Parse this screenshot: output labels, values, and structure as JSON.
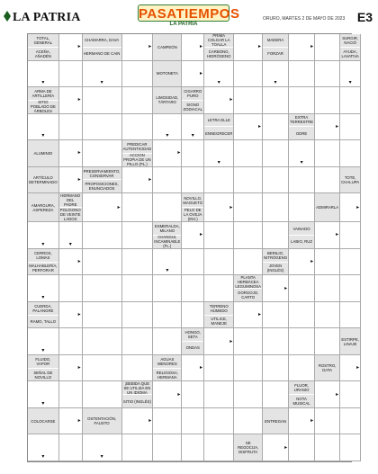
{
  "header": {
    "brand": "LA PATRIA",
    "logo_main": "PASATIEMPOS",
    "logo_sub": "LA PATRIA",
    "date": "ORURO, MARTES 2 DE MAYO DE 2023",
    "page": "E3"
  },
  "grid": {
    "cols": 12,
    "rows": 16,
    "defs": [
      {
        "r": 0,
        "c": 0,
        "clues": [
          "TOTAL, GENERAL",
          "ACEÑA, AÑADÉN"
        ]
      },
      {
        "r": 0,
        "c": 2,
        "clues": [
          "CHAMARRA, DAVA",
          "HERMANO DE CAIN"
        ]
      },
      {
        "r": 0,
        "c": 4,
        "clues": [
          "CAMPEÓN"
        ]
      },
      {
        "r": 0,
        "c": 6,
        "clues": [
          "PRIMA COLGAR LA TOALLA",
          "CARBONO, HIDRÓGENO"
        ]
      },
      {
        "r": 0,
        "c": 8,
        "clues": [
          "MADERA",
          "FORZAR"
        ]
      },
      {
        "r": 0,
        "c": 11,
        "clues": [
          "SURGIR, NACIÓ",
          "AYUDA, LAVATIVA"
        ]
      },
      {
        "r": 1,
        "c": 4,
        "clues": [
          "MOTONETA"
        ]
      },
      {
        "r": 2,
        "c": 4,
        "clues": [
          "LIMOSIDAD, TÁRTARO"
        ]
      },
      {
        "r": 2,
        "c": 0,
        "clues": [
          "ARMA DE ARTILLERÍA",
          "SITIO POBLADO DE ÁRBOLES"
        ]
      },
      {
        "r": 2,
        "c": 5,
        "clues": [
          "CIGARRO PURO",
          "SIGNO ZODIACAL"
        ]
      },
      {
        "r": 3,
        "c": 6,
        "clues": [
          "LETRA ELLE",
          "ENNEGRECER"
        ]
      },
      {
        "r": 3,
        "c": 9,
        "clues": [
          "EXTRA TERRESTRE",
          "ODRE"
        ]
      },
      {
        "r": 4,
        "c": 0,
        "clues": [
          "ALUMINIO"
        ]
      },
      {
        "r": 4,
        "c": 3,
        "clues": [
          "PREDICAR AUTENTICIDAD",
          "ACCIÓN PROPIA DE UN PILLO (PL.)"
        ]
      },
      {
        "r": 5,
        "c": 0,
        "clues": [
          "ARTÍCULO DETERMINADO"
        ]
      },
      {
        "r": 5,
        "c": 2,
        "clues": [
          "PRESERVAMIENTO, CONSERVAR",
          "PROPOSICIONES, ENUNCIADOS"
        ]
      },
      {
        "r": 5,
        "c": 11,
        "clues": [
          "TOTE, CHALUPA"
        ]
      },
      {
        "r": 6,
        "c": 1,
        "clues": [
          "HERMANO DEL PADRE",
          "POLÍGONO DE VEINTE LADOS"
        ]
      },
      {
        "r": 6,
        "c": 5,
        "clues": [
          "NOVILLO, MAGUETO",
          "PELO DE LA OVEJA (INV.)"
        ]
      },
      {
        "r": 6,
        "c": 0,
        "clues": [
          "AMARGURA, ASPEREZA"
        ]
      },
      {
        "r": 6,
        "c": 10,
        "clues": [
          "ADMIRARLA"
        ]
      },
      {
        "r": 7,
        "c": 4,
        "clues": [
          "ESMERALDA, MILANO",
          "CHANGUÍ, INCAMINABLE (FL.)"
        ]
      },
      {
        "r": 7,
        "c": 9,
        "clues": [
          "VAINADO",
          "LABIO, RUZ"
        ]
      },
      {
        "r": 8,
        "c": 0,
        "clues": [
          "CERROS, LOMAS",
          "MALHABLERÍA, PERFORAR"
        ]
      },
      {
        "r": 8,
        "c": 8,
        "clues": [
          "BERILIO, NITRÓGENO",
          "JOVEN (INGLÉS)"
        ]
      },
      {
        "r": 9,
        "c": 7,
        "clues": [
          "PLANTA HERBÁCEA LEGUMINOSA",
          "GORGOJO, CARTO"
        ]
      },
      {
        "r": 10,
        "c": 0,
        "clues": [
          "CUERDA, PALANGRE",
          "RAMO, TALLO"
        ]
      },
      {
        "r": 10,
        "c": 6,
        "clues": [
          "TERRENO HÚMEDO",
          "UTILICE, MANEJE"
        ]
      },
      {
        "r": 11,
        "c": 11,
        "clues": [
          "ESTIRPE, LINAJE"
        ]
      },
      {
        "r": 11,
        "c": 5,
        "clues": [
          "HONGO, SETA",
          "ONDAS"
        ]
      },
      {
        "r": 12,
        "c": 4,
        "clues": [
          "AGUAS MENORES",
          "RELIGIOSA, HERMANA"
        ]
      },
      {
        "r": 12,
        "c": 0,
        "clues": [
          "FLUIDO, VAPOR",
          "SEÑAL DE NOVILLO"
        ]
      },
      {
        "r": 12,
        "c": 10,
        "clues": [
          "ROSTRO, DATA"
        ]
      },
      {
        "r": 13,
        "c": 3,
        "clues": [
          "¡BEBIDA QUE SE UTILIZA EN UN IDIOMA",
          "SITIO (INGLÉS)"
        ]
      },
      {
        "r": 13,
        "c": 9,
        "clues": [
          "FLUOR, URANIO",
          "NOTA MUSICAL"
        ]
      },
      {
        "r": 14,
        "c": 0,
        "clues": [
          "COLOCARSE"
        ]
      },
      {
        "r": 14,
        "c": 2,
        "clues": [
          "OSTENTACIÓN, FAUSTO"
        ]
      },
      {
        "r": 14,
        "c": 8,
        "clues": [
          "ENTREGAN"
        ]
      },
      {
        "r": 15,
        "c": 7,
        "clues": [
          "SE REGOCIJA, DISFRUTA"
        ]
      }
    ]
  }
}
